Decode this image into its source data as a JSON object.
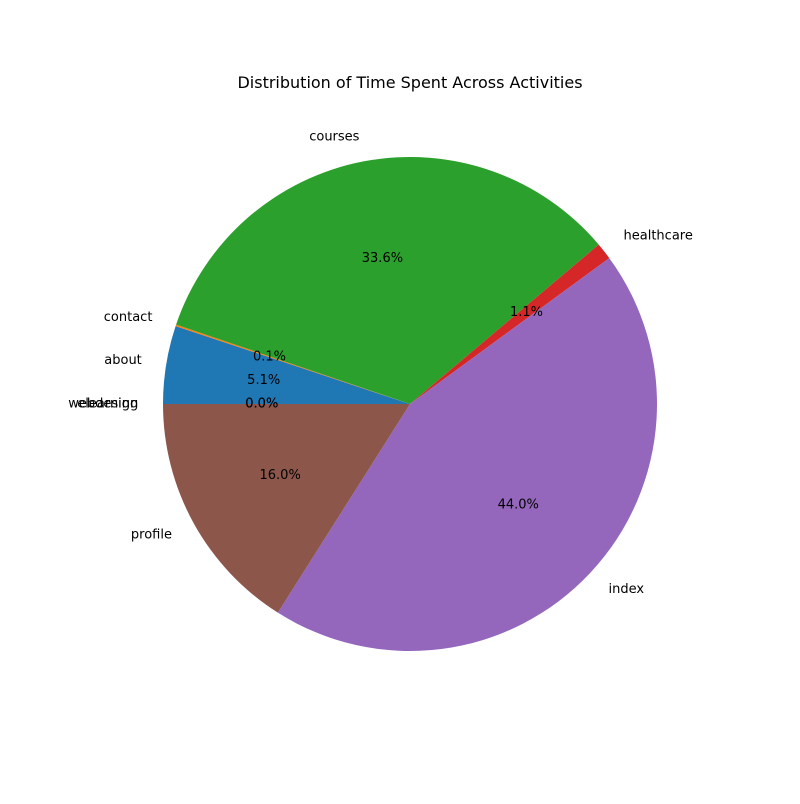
{
  "chart_data": {
    "type": "pie",
    "title": "Distribution of Time Spent Across Activities",
    "start_angle_deg": 180,
    "direction": "clockwise",
    "slices": [
      {
        "label": "about",
        "value": 5.1,
        "pct_label": "5.1%",
        "color": "#1f77b4"
      },
      {
        "label": "contact",
        "value": 0.1,
        "pct_label": "0.1%",
        "color": "#ff7f0e"
      },
      {
        "label": "courses",
        "value": 33.6,
        "pct_label": "33.6%",
        "color": "#2ca02c"
      },
      {
        "label": "healthcare",
        "value": 1.1,
        "pct_label": "1.1%",
        "color": "#d62728"
      },
      {
        "label": "index",
        "value": 44.0,
        "pct_label": "44.0%",
        "color": "#9467bd"
      },
      {
        "label": "profile",
        "value": 16.0,
        "pct_label": "16.0%",
        "color": "#8c564b"
      },
      {
        "label": "webdesign",
        "value": 0.0,
        "pct_label": "0.0%",
        "color": "#e377c2"
      },
      {
        "label": "elearning",
        "value": 0.0,
        "pct_label": "0.0%",
        "color": "#7f7f7f"
      }
    ]
  }
}
